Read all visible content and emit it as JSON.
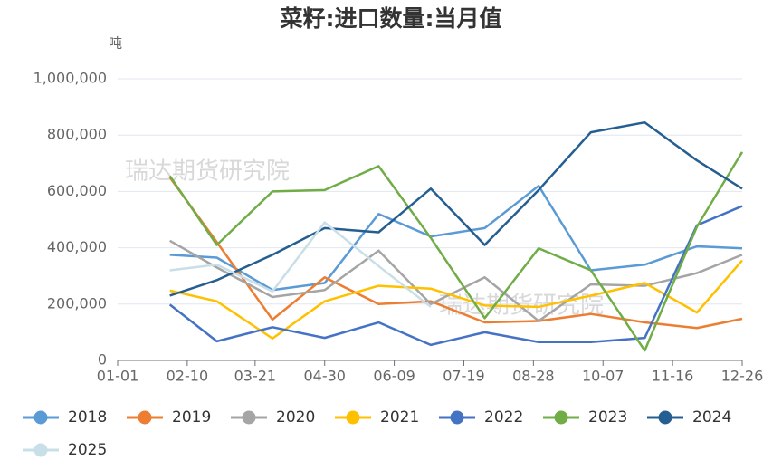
{
  "chart_data": {
    "type": "line",
    "title": "菜籽:进口数量:当月值",
    "y_unit": "吨",
    "watermark": [
      "瑞达期货研究院",
      "瑞达期货研究院"
    ],
    "x": [
      "01-31",
      "02-27",
      "03-31",
      "04-30",
      "05-31",
      "06-30",
      "07-31",
      "08-31",
      "09-30",
      "10-31",
      "11-30",
      "12-26"
    ],
    "xlim": [
      "01-01",
      "12-26"
    ],
    "xticks": [
      "01-01",
      "02-10",
      "03-21",
      "04-30",
      "06-09",
      "07-19",
      "08-28",
      "10-07",
      "11-16",
      "12-26"
    ],
    "ylim": [
      0,
      1000000
    ],
    "yticks": [
      0,
      {
        "value": 200000,
        "label": "200,000"
      },
      {
        "value": 400000,
        "label": "400,000"
      },
      {
        "value": 600000,
        "label": "600,000"
      },
      {
        "value": 800000,
        "label": "800,000"
      },
      {
        "value": 1000000,
        "label": "1,000,000"
      }
    ],
    "grid": true,
    "series": [
      {
        "name": "2018",
        "color": "#5b9bd5",
        "values": [
          375000,
          365000,
          250000,
          275000,
          520000,
          440000,
          470000,
          620000,
          320000,
          340000,
          405000,
          398000
        ]
      },
      {
        "name": "2019",
        "color": "#ed7d31",
        "values": [
          650000,
          420000,
          145000,
          295000,
          200000,
          210000,
          135000,
          140000,
          165000,
          135000,
          115000,
          148000
        ]
      },
      {
        "name": "2020",
        "color": "#a5a5a5",
        "values": [
          425000,
          330000,
          225000,
          250000,
          390000,
          200000,
          295000,
          140000,
          270000,
          265000,
          310000,
          375000
        ]
      },
      {
        "name": "2021",
        "color": "#ffc000",
        "values": [
          248000,
          210000,
          78000,
          210000,
          265000,
          255000,
          195000,
          190000,
          230000,
          275000,
          170000,
          355000
        ]
      },
      {
        "name": "2022",
        "color": "#4472c4",
        "values": [
          198000,
          68000,
          118000,
          80000,
          135000,
          55000,
          100000,
          65000,
          65000,
          80000,
          480000,
          548000
        ]
      },
      {
        "name": "2023",
        "color": "#70ad47",
        "values": [
          655000,
          410000,
          600000,
          605000,
          690000,
          435000,
          150000,
          398000,
          320000,
          35000,
          475000,
          740000
        ]
      },
      {
        "name": "2024",
        "color": "#255e91",
        "values": [
          230000,
          285000,
          375000,
          470000,
          455000,
          610000,
          410000,
          605000,
          810000,
          845000,
          710000,
          610000
        ]
      },
      {
        "name": "2025",
        "color": "#c9dfe8",
        "values": [
          320000,
          340000,
          245000,
          490000,
          335000,
          190000,
          null,
          null,
          null,
          null,
          null,
          null
        ]
      }
    ]
  }
}
